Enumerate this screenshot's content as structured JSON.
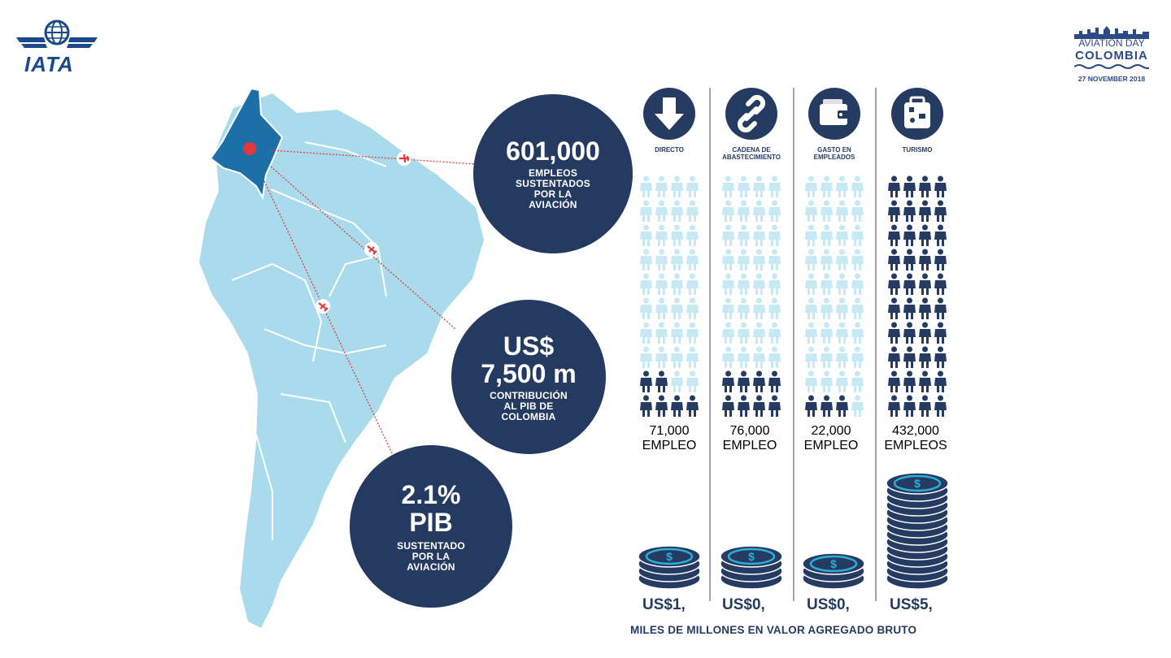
{
  "logos": {
    "iata": "IATA",
    "event_line1": "AVIATION DAY",
    "event_line2": "COLOMBIA",
    "event_line3": "27 NOVEMBER 2018"
  },
  "circles": {
    "jobs": {
      "big": "601,000",
      "small": "EMPLEOS SUSTENTADOS POR LA AVIACIÓN"
    },
    "gdp": {
      "big1": "US$",
      "big2": "7,500 m",
      "small": "CONTRIBUCIÓN AL PIB DE COLOMBIA"
    },
    "pct": {
      "big1": "2.1%",
      "big2": "PIB",
      "small": "SUSTENTADO POR LA AVIACIÓN"
    }
  },
  "columns": [
    {
      "key": "directo",
      "label": "DIRECTO",
      "icon": "arrow-down-icon",
      "jobs": "71,000",
      "jobs_label": "EMPLEO",
      "value": "US$1,",
      "filled_people": 6,
      "coins": 4
    },
    {
      "key": "cadena",
      "label": "CADENA DE ABASTECIMIENTO",
      "icon": "chain-link-icon",
      "jobs": "76,000",
      "jobs_label": "EMPLEO",
      "value": "US$0,",
      "filled_people": 8,
      "coins": 4
    },
    {
      "key": "gasto",
      "label": "GASTO EN EMPLEADOS",
      "icon": "wallet-icon",
      "jobs": "22,000",
      "jobs_label": "EMPLEO",
      "value": "US$0,",
      "filled_people": 3,
      "coins": 3
    },
    {
      "key": "turismo",
      "label": "TURISMO",
      "icon": "suitcase-icon",
      "jobs": "432,000",
      "jobs_label": "EMPLEOS",
      "value": "US$5,",
      "filled_people": 40,
      "coins": 14
    }
  ],
  "footer": {
    "caption": "MILES DE MILLONES EN VALOR AGREGADO BRUTO"
  },
  "colors": {
    "navy": "#253b62",
    "light_blue": "#a9dbec",
    "colombia": "#1d6fa8",
    "pin": "#e2383c",
    "faded_person": "#c6e9f3"
  }
}
